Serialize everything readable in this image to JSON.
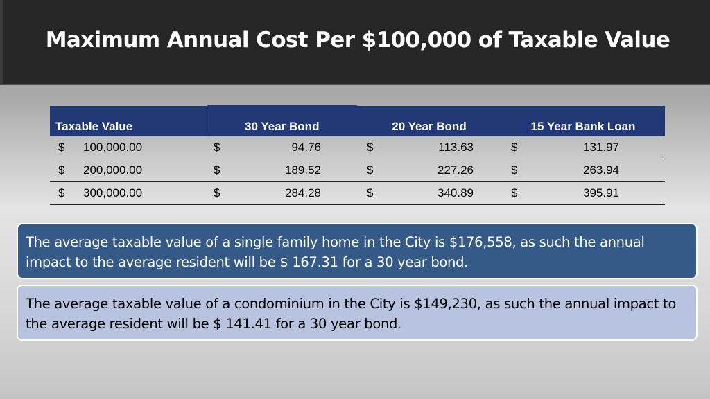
{
  "title": "Maximum Annual Cost Per $100,000 of Taxable Value",
  "table": {
    "headers": [
      "Taxable Value",
      "30 Year Bond",
      "20 Year Bond",
      "15 Year Bank Loan"
    ],
    "rows": [
      [
        {
          "cur": "$",
          "val": "100,000.00"
        },
        {
          "cur": "$",
          "val": "94.76"
        },
        {
          "cur": "$",
          "val": "113.63"
        },
        {
          "cur": "$",
          "val": "131.97"
        }
      ],
      [
        {
          "cur": "$",
          "val": "200,000.00"
        },
        {
          "cur": "$",
          "val": "189.52"
        },
        {
          "cur": "$",
          "val": "227.26"
        },
        {
          "cur": "$",
          "val": "263.94"
        }
      ],
      [
        {
          "cur": "$",
          "val": "300,000.00"
        },
        {
          "cur": "$",
          "val": "284.28"
        },
        {
          "cur": "$",
          "val": "340.89"
        },
        {
          "cur": "$",
          "val": "395.91"
        }
      ]
    ]
  },
  "notes": {
    "single_family": "The average taxable value of a single family home in the City is $176,558, as such the annual impact to the average resident will be $ 167.31 for a 30 year bond.",
    "condominium": "The average taxable value of a condominium in the City is $149,230, as such the annual impact to the average resident will be $ 141.41 for a 30 year bond",
    "condominium_end": "."
  },
  "colors": {
    "title_bar": "#262626",
    "table_header": "#213a77",
    "note_dark": "#355a88",
    "note_light": "#b8c4df"
  }
}
